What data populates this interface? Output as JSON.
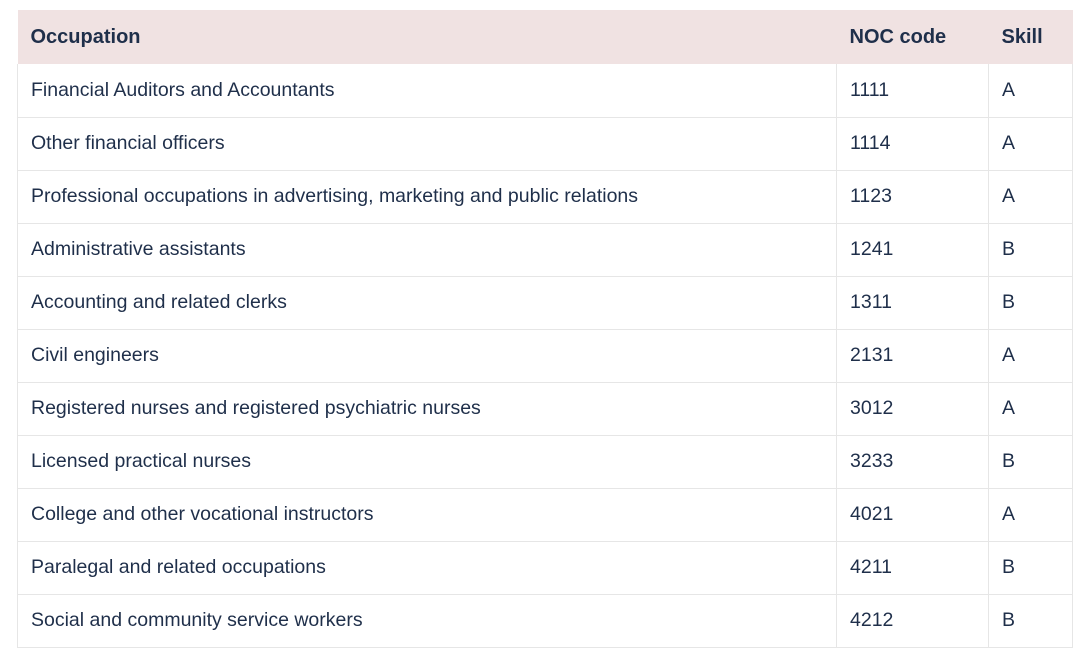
{
  "table": {
    "headers": {
      "occupation": "Occupation",
      "noc_code": "NOC code",
      "skill": "Skill"
    },
    "rows": [
      {
        "occupation": "Financial Auditors and Accountants",
        "noc": "1111",
        "skill": "A"
      },
      {
        "occupation": "Other financial officers",
        "noc": "1114",
        "skill": "A"
      },
      {
        "occupation": "Professional occupations in advertising, marketing and public relations",
        "noc": "1123",
        "skill": "A"
      },
      {
        "occupation": "Administrative assistants",
        "noc": "1241",
        "skill": "B"
      },
      {
        "occupation": "Accounting and related clerks",
        "noc": "1311",
        "skill": "B"
      },
      {
        "occupation": "Civil engineers",
        "noc": "2131",
        "skill": "A"
      },
      {
        "occupation": "Registered nurses and registered psychiatric nurses",
        "noc": "3012",
        "skill": "A"
      },
      {
        "occupation": "Licensed practical nurses",
        "noc": "3233",
        "skill": "B"
      },
      {
        "occupation": "College and other vocational instructors",
        "noc": "4021",
        "skill": "A"
      },
      {
        "occupation": "Paralegal and related occupations",
        "noc": "4211",
        "skill": "B"
      },
      {
        "occupation": "Social and community service workers",
        "noc": "4212",
        "skill": "B"
      }
    ]
  },
  "colors": {
    "header_background": "#f0e2e2",
    "text": "#1f2f4a",
    "grid_line": "#e6e6e6"
  }
}
